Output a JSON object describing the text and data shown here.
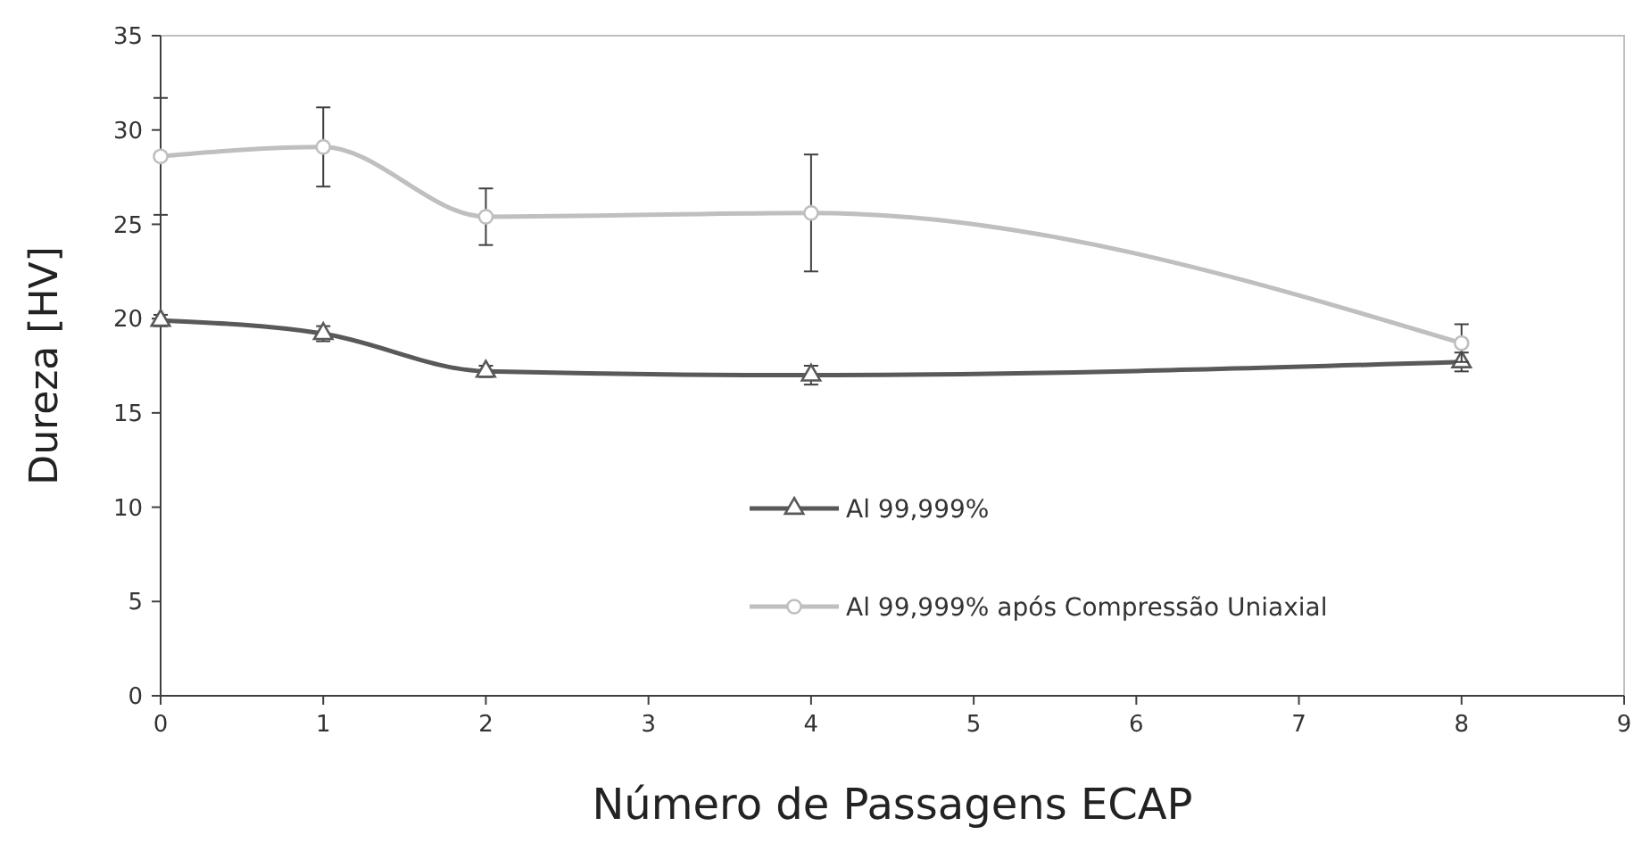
{
  "chart_data": {
    "type": "line",
    "xlabel": "Número de Passagens ECAP",
    "ylabel": "Dureza [HV]",
    "x": [
      0,
      1,
      2,
      4,
      8
    ],
    "series": [
      {
        "name": "Al 99,999%",
        "color": "#595959",
        "marker": "triangle",
        "values": [
          19.9,
          19.2,
          17.2,
          17.0,
          17.7
        ],
        "errors": [
          0.3,
          0.4,
          0.3,
          0.5,
          0.5
        ]
      },
      {
        "name": "Al 99,999% após Compressão Uniaxial",
        "color": "#bfbfbf",
        "marker": "circle",
        "values": [
          28.6,
          29.1,
          25.4,
          25.6,
          18.7
        ],
        "errors": [
          3.1,
          2.1,
          1.5,
          3.1,
          1.0
        ]
      }
    ],
    "xlim": [
      0,
      9
    ],
    "xticks": [
      0,
      1,
      2,
      3,
      4,
      5,
      6,
      7,
      8,
      9
    ],
    "ylim": [
      0,
      35
    ],
    "yticks": [
      0,
      5,
      10,
      15,
      20,
      25,
      30,
      35
    ],
    "grid": false,
    "legend": "bottom right",
    "line_style": "solid"
  }
}
